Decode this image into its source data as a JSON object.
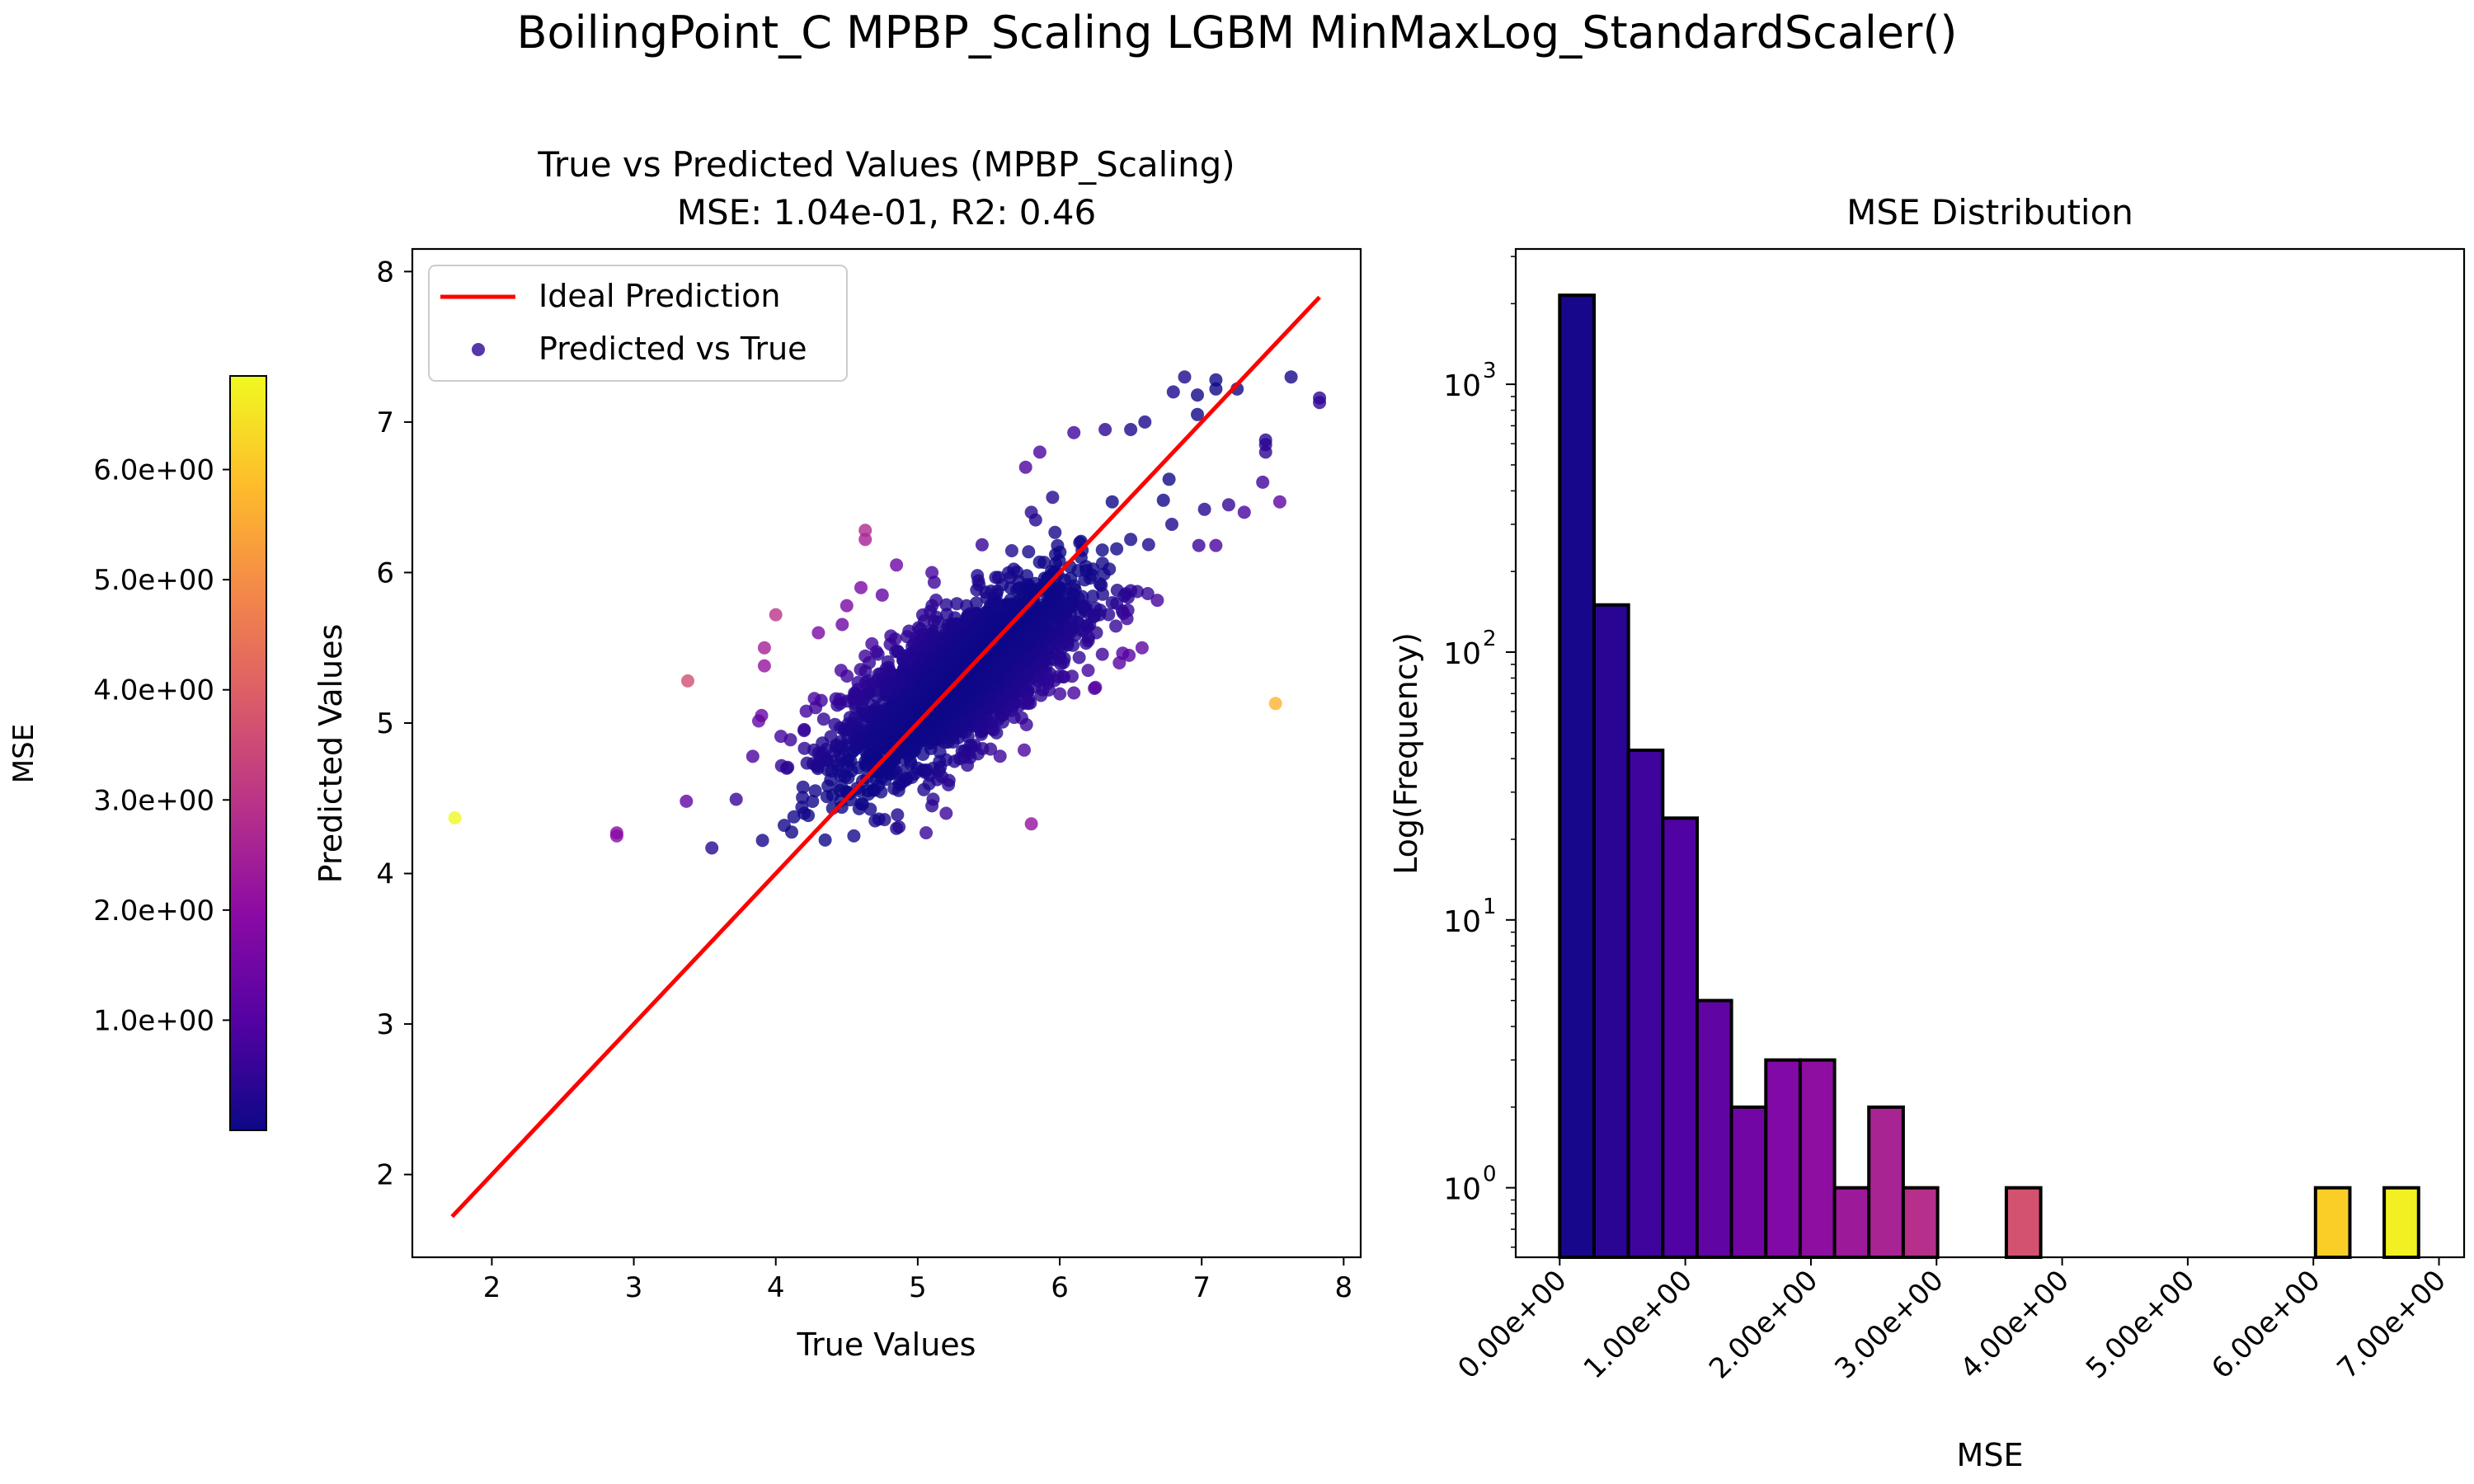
{
  "figure": {
    "suptitle": "BoilingPoint_C MPBP_Scaling LGBM MinMaxLog_StandardScaler()"
  },
  "colorbar": {
    "label": "MSE",
    "range": [
      0.0,
      6.85
    ],
    "ticks": [
      1.0,
      2.0,
      3.0,
      4.0,
      5.0,
      6.0
    ],
    "tick_labels": [
      "1.0e+00",
      "2.0e+00",
      "3.0e+00",
      "4.0e+00",
      "5.0e+00",
      "6.0e+00"
    ],
    "colormap": "plasma",
    "colormap_stops": [
      "#0d0887",
      "#5302a3",
      "#8b0aa5",
      "#b83289",
      "#db5c68",
      "#f48849",
      "#febd2a",
      "#f0f921"
    ]
  },
  "chart_data": [
    {
      "type": "scatter",
      "title_line1": "True vs Predicted Values (MPBP_Scaling)",
      "title_line2": "MSE: 1.04e-01, R2: 0.46",
      "xlabel": "True Values",
      "ylabel": "Predicted Values",
      "xlim": [
        1.44,
        8.12
      ],
      "ylim": [
        1.45,
        8.15
      ],
      "xticks": [
        "2",
        "3",
        "4",
        "5",
        "6",
        "7",
        "8"
      ],
      "yticks": [
        "2",
        "3",
        "4",
        "5",
        "6",
        "7",
        "8"
      ],
      "grid": false,
      "legend": {
        "placement": "top-left",
        "entries": [
          "Ideal Prediction",
          "Predicted vs True"
        ]
      },
      "ideal_line": {
        "name": "Ideal Prediction",
        "color": "#ff0000",
        "x": [
          1.72,
          7.83
        ],
        "y": [
          1.72,
          7.83
        ]
      },
      "series": [
        {
          "name": "Predicted vs True",
          "color_by": "MSE",
          "core_points": 2300,
          "core_center": [
            5.3,
            5.3
          ],
          "core_spread": [
            0.42,
            0.32
          ],
          "points": [
            [
              1.74,
              4.37
            ],
            [
              2.88,
              4.27
            ],
            [
              2.88,
              4.25
            ],
            [
              3.38,
              5.28
            ],
            [
              3.37,
              4.48
            ],
            [
              3.55,
              4.17
            ],
            [
              4.06,
              4.32
            ],
            [
              4.0,
              5.72
            ],
            [
              3.92,
              5.38
            ],
            [
              3.92,
              5.5
            ],
            [
              3.9,
              5.05
            ],
            [
              4.2,
              4.4
            ],
            [
              4.63,
              6.28
            ],
            [
              4.63,
              6.22
            ],
            [
              5.8,
              4.33
            ],
            [
              7.52,
              5.13
            ],
            [
              7.83,
              7.13
            ],
            [
              7.83,
              7.16
            ],
            [
              7.63,
              7.3
            ],
            [
              7.45,
              6.85
            ],
            [
              7.45,
              6.8
            ],
            [
              7.45,
              6.88
            ],
            [
              7.25,
              7.22
            ],
            [
              7.1,
              7.28
            ],
            [
              7.1,
              7.22
            ],
            [
              6.97,
              7.18
            ],
            [
              6.97,
              7.05
            ],
            [
              6.88,
              7.3
            ],
            [
              6.8,
              7.2
            ],
            [
              6.6,
              7.0
            ],
            [
              6.5,
              6.95
            ],
            [
              6.32,
              6.95
            ],
            [
              6.1,
              6.93
            ],
            [
              5.86,
              6.8
            ],
            [
              5.76,
              6.7
            ],
            [
              5.95,
              6.5
            ],
            [
              5.8,
              6.4
            ],
            [
              5.83,
              6.35
            ],
            [
              6.37,
              6.47
            ],
            [
              6.77,
              6.62
            ],
            [
              6.73,
              6.48
            ],
            [
              6.79,
              6.32
            ],
            [
              6.98,
              6.18
            ],
            [
              7.1,
              6.18
            ],
            [
              7.3,
              6.4
            ],
            [
              7.43,
              6.6
            ],
            [
              7.19,
              6.45
            ],
            [
              7.55,
              6.47
            ],
            [
              7.02,
              6.42
            ],
            [
              6.5,
              6.22
            ],
            [
              6.62,
              5.86
            ],
            [
              6.37,
              5.8
            ],
            [
              6.48,
              5.75
            ],
            [
              6.28,
              5.72
            ],
            [
              6.58,
              5.5
            ],
            [
              6.42,
              5.4
            ],
            [
              6.2,
              5.35
            ],
            [
              6.1,
              5.2
            ],
            [
              5.97,
              6.12
            ],
            [
              6.15,
              6.1
            ],
            [
              6.3,
              6.15
            ],
            [
              5.1,
              4.45
            ],
            [
              5.2,
              4.4
            ],
            [
              4.85,
              4.3
            ],
            [
              4.65,
              4.55
            ],
            [
              4.55,
              4.25
            ],
            [
              4.7,
              4.35
            ],
            [
              4.5,
              4.75
            ],
            [
              4.3,
              4.8
            ],
            [
              4.2,
              4.95
            ],
            [
              4.32,
              5.15
            ],
            [
              4.46,
              5.35
            ],
            [
              4.3,
              5.6
            ],
            [
              4.5,
              5.78
            ],
            [
              4.75,
              5.85
            ],
            [
              4.6,
              5.9
            ],
            [
              5.0,
              4.7
            ],
            [
              5.35,
              4.72
            ],
            [
              5.58,
              4.78
            ],
            [
              5.75,
              4.82
            ],
            [
              4.78,
              4.95
            ],
            [
              4.4,
              4.52
            ],
            [
              4.85,
              6.05
            ],
            [
              5.1,
              6.0
            ],
            [
              5.42,
              5.98
            ]
          ]
        }
      ]
    },
    {
      "type": "bar",
      "title": "MSE Distribution",
      "xlabel": "MSE",
      "ylabel": "Log(Frequency)",
      "scale_y": "log",
      "xlim": [
        -0.35,
        7.2
      ],
      "ylim": [
        0.55,
        3200
      ],
      "xtick_values": [
        0,
        1,
        2,
        3,
        4,
        5,
        6,
        7
      ],
      "xtick_labels": [
        "0.00e+00",
        "1.00e+00",
        "2.00e+00",
        "3.00e+00",
        "4.00e+00",
        "5.00e+00",
        "6.00e+00",
        "7.00e+00"
      ],
      "ytick_labels": [
        "10",
        "10",
        "10",
        "10"
      ],
      "ytick_exponents": [
        "0",
        "1",
        "2",
        "3"
      ],
      "grid": false,
      "bin_edges": [
        0.0,
        0.2735,
        0.547,
        0.8205,
        1.094,
        1.3675,
        1.641,
        1.9145,
        2.188,
        2.4615,
        2.735,
        3.0085,
        3.282,
        3.5555,
        3.829,
        4.1025,
        4.376,
        4.6495,
        4.923,
        5.1965,
        5.47,
        5.7435,
        6.017,
        6.2905,
        6.564,
        6.8375
      ],
      "bin_centers": [
        0.137,
        0.41,
        0.684,
        0.957,
        1.231,
        1.504,
        1.778,
        2.051,
        2.325,
        2.598,
        2.872,
        3.145,
        3.419,
        3.692,
        3.966,
        4.239,
        4.513,
        4.786,
        5.06,
        5.333,
        5.607,
        5.88,
        6.154,
        6.427,
        6.701
      ],
      "counts": [
        2150,
        150,
        43,
        24,
        5,
        2,
        3,
        3,
        1,
        2,
        1,
        0,
        0,
        1,
        0,
        0,
        0,
        0,
        0,
        0,
        0,
        0,
        1,
        0,
        1
      ]
    }
  ]
}
